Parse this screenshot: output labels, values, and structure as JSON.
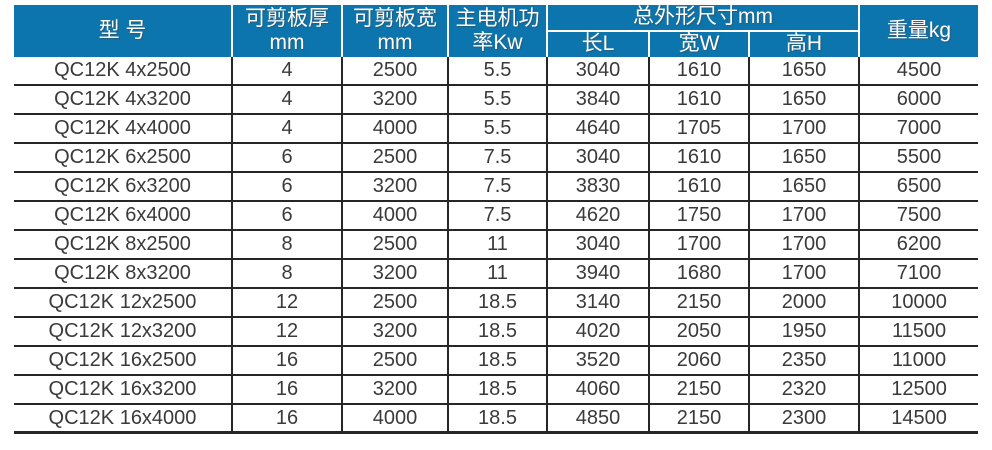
{
  "colors": {
    "header_bg": "#0d75ad",
    "header_text": "#ffffff",
    "cell_text": "#3a3a3a",
    "grid_line": "#262626",
    "page_bg": "#ffffff"
  },
  "table": {
    "headers": {
      "model": "型 号",
      "thickness_line1": "可剪板厚",
      "thickness_line2": "mm",
      "width_line1": "可剪板宽",
      "width_line2": "mm",
      "power_line1": "主电机功",
      "power_line2": "率Kw",
      "dimensions_group": "总外形尺寸mm",
      "length": "长L",
      "width": "宽W",
      "height": "高H",
      "weight": "重量kg"
    },
    "rows": [
      [
        "QC12K 4x2500",
        "4",
        "2500",
        "5.5",
        "3040",
        "1610",
        "1650",
        "4500"
      ],
      [
        "QC12K 4x3200",
        "4",
        "3200",
        "5.5",
        "3840",
        "1610",
        "1650",
        "6000"
      ],
      [
        "QC12K 4x4000",
        "4",
        "4000",
        "5.5",
        "4640",
        "1705",
        "1700",
        "7000"
      ],
      [
        "QC12K 6x2500",
        "6",
        "2500",
        "7.5",
        "3040",
        "1610",
        "1650",
        "5500"
      ],
      [
        "QC12K 6x3200",
        "6",
        "3200",
        "7.5",
        "3830",
        "1610",
        "1650",
        "6500"
      ],
      [
        "QC12K 6x4000",
        "6",
        "4000",
        "7.5",
        "4620",
        "1750",
        "1700",
        "7500"
      ],
      [
        "QC12K 8x2500",
        "8",
        "2500",
        "11",
        "3040",
        "1700",
        "1700",
        "6200"
      ],
      [
        "QC12K 8x3200",
        "8",
        "3200",
        "11",
        "3940",
        "1680",
        "1700",
        "7100"
      ],
      [
        "QC12K 12x2500",
        "12",
        "2500",
        "18.5",
        "3140",
        "2150",
        "2000",
        "10000"
      ],
      [
        "QC12K 12x3200",
        "12",
        "3200",
        "18.5",
        "4020",
        "2050",
        "1950",
        "11500"
      ],
      [
        "QC12K 16x2500",
        "16",
        "2500",
        "18.5",
        "3520",
        "2060",
        "2350",
        "11000"
      ],
      [
        "QC12K 16x3200",
        "16",
        "3200",
        "18.5",
        "4060",
        "2150",
        "2320",
        "12500"
      ],
      [
        "QC12K 16x4000",
        "16",
        "4000",
        "18.5",
        "4850",
        "2150",
        "2300",
        "14500"
      ]
    ]
  }
}
